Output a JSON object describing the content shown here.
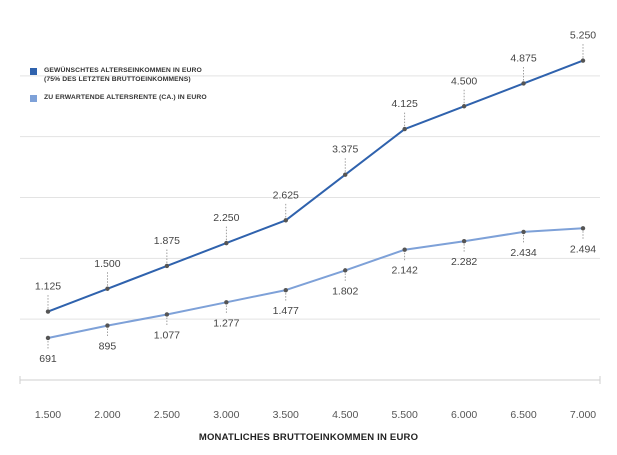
{
  "chart_data": {
    "type": "line",
    "categories": [
      "1.500",
      "2.000",
      "2.500",
      "3.000",
      "3.500",
      "4.500",
      "5.500",
      "6.000",
      "6.500",
      "7.000"
    ],
    "xlabel": "MONATLICHES BRUTTOEINKOMMEN IN EURO",
    "ylabel": "",
    "ylim": [
      0,
      6000
    ],
    "grid": true,
    "legend_position": "top-left",
    "series": [
      {
        "name": "GEWÜNSCHTES ALTERSEINKOMMEN IN EURO (75% DES LETZTEN BRUTTOEINKOMMENS)",
        "legend_lines": [
          "GEWÜNSCHTES ALTERSEINKOMMEN IN EURO",
          "(75% DES LETZTEN BRUTTOEINKOMMENS)"
        ],
        "color": "#2f62ad",
        "values": [
          1125,
          1500,
          1875,
          2250,
          2625,
          3375,
          4125,
          4500,
          4875,
          5250
        ],
        "labels": [
          "1.125",
          "1.500",
          "1.875",
          "2.250",
          "2.625",
          "3.375",
          "4.125",
          "4.500",
          "4.875",
          "5.250"
        ]
      },
      {
        "name": "ZU ERWARTENDE ALTERSRENTE (CA.) IN EURO",
        "legend_lines": [
          "ZU ERWARTENDE ALTERSRENTE (CA.) IN EURO"
        ],
        "color": "#7ea1d8",
        "values": [
          691,
          895,
          1077,
          1277,
          1477,
          1802,
          2142,
          2282,
          2434,
          2494
        ],
        "labels": [
          "691",
          "895",
          "1.077",
          "1.277",
          "1.477",
          "1.802",
          "2.142",
          "2.282",
          "2.434",
          "2.494"
        ]
      }
    ]
  }
}
